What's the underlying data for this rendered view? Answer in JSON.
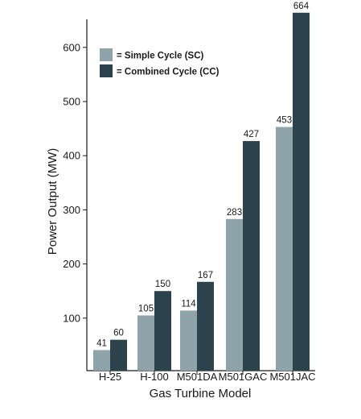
{
  "chart_data": {
    "type": "bar",
    "categories": [
      "H-25",
      "H-100",
      "M501DA",
      "M501GAC",
      "M501JAC"
    ],
    "series": [
      {
        "name": "= Simple Cycle (SC)",
        "values": [
          41,
          105,
          114,
          283,
          453
        ],
        "color": "#8fa3ab"
      },
      {
        "name": "= Combined Cycle (CC)",
        "values": [
          60,
          150,
          167,
          427,
          664
        ],
        "color": "#2c424d"
      }
    ],
    "data_labels": [
      [
        "41",
        "105",
        "114",
        "283",
        "453"
      ],
      [
        "60",
        "150",
        "167",
        "427",
        "664"
      ]
    ],
    "title": "",
    "xlabel": "Gas Turbine Model",
    "ylabel": "Power Output (MW)",
    "yticks": [
      100,
      200,
      300,
      400,
      500,
      600
    ],
    "ylim": [
      0,
      680
    ],
    "grid": false,
    "legend_position": "top-left"
  }
}
